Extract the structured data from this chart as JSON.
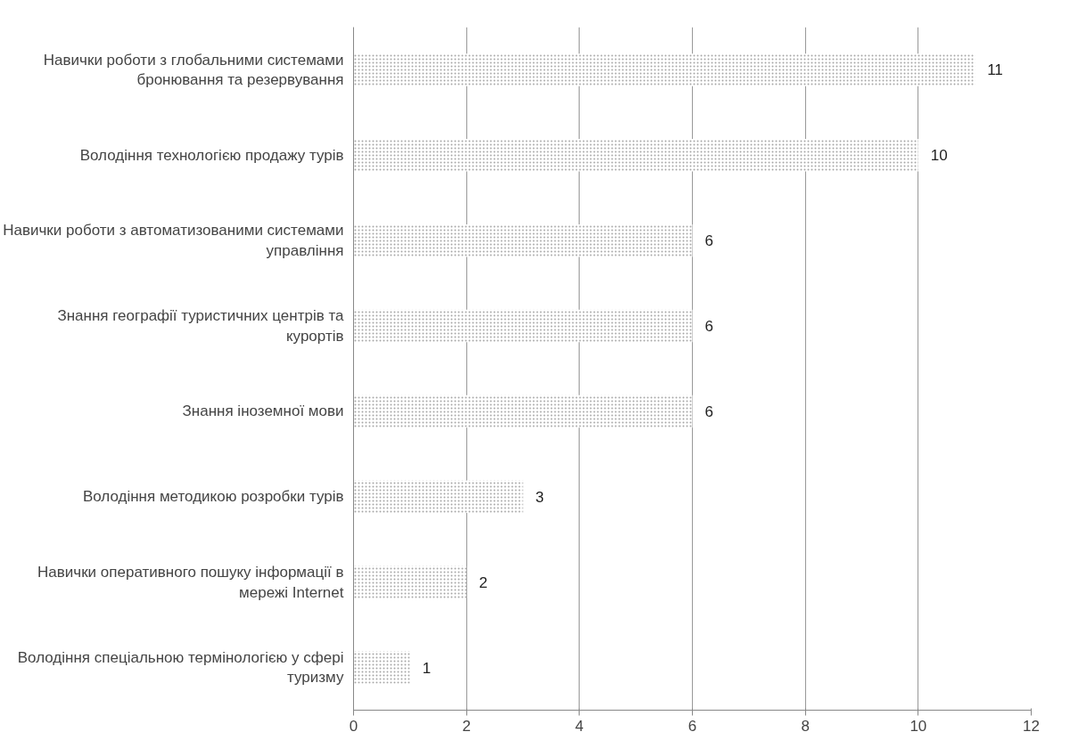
{
  "chart_data": {
    "type": "bar",
    "orientation": "horizontal",
    "categories": [
      "Навички роботи з глобальними системами бронювання та резервування",
      "Володіння технологією продажу турів",
      "Навички роботи з автоматизованими системами управління",
      "Знання географії туристичних центрів та курортів",
      "Знання іноземної мови",
      "Володіння методикою розробки турів",
      "Навички оперативного пошуку інформації в мережі Internet",
      "Володіння спеціальною термінологією у сфері туризму"
    ],
    "values": [
      11,
      10,
      6,
      6,
      6,
      3,
      2,
      1
    ],
    "color": "#a6a6a6",
    "xlim": [
      0,
      12
    ],
    "xticks": [
      0,
      2,
      4,
      6,
      8,
      10,
      12
    ],
    "grid": "x",
    "data_labels": true
  }
}
